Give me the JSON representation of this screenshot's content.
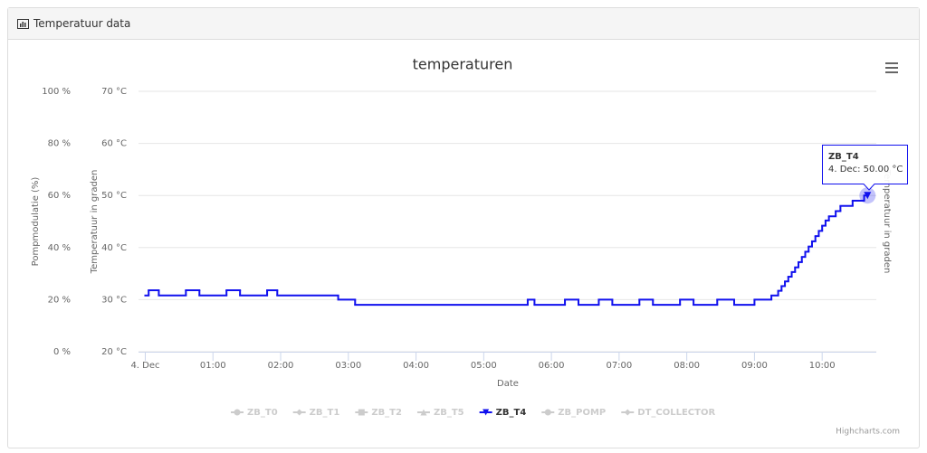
{
  "panel": {
    "title": "Temperatuur data"
  },
  "chart_data": {
    "type": "line",
    "step": true,
    "title": "temperaturen",
    "xlabel": "Date",
    "ylabel": "Temperatuur in graden",
    "y2label": "Pompmodulatie (%)",
    "y_right_label": "Temperatuur in graden",
    "xlim": [
      -0.1,
      10.8
    ],
    "xticks": [
      {
        "value": 0,
        "label": "4. Dec"
      },
      {
        "value": 1,
        "label": "01:00"
      },
      {
        "value": 2,
        "label": "02:00"
      },
      {
        "value": 3,
        "label": "03:00"
      },
      {
        "value": 4,
        "label": "04:00"
      },
      {
        "value": 5,
        "label": "05:00"
      },
      {
        "value": 6,
        "label": "06:00"
      },
      {
        "value": 7,
        "label": "07:00"
      },
      {
        "value": 8,
        "label": "08:00"
      },
      {
        "value": 9,
        "label": "09:00"
      },
      {
        "value": 10,
        "label": "10:00"
      }
    ],
    "ylim": [
      20,
      70
    ],
    "yticks": [
      {
        "value": 20,
        "label": "20 °C"
      },
      {
        "value": 30,
        "label": "30 °C"
      },
      {
        "value": 40,
        "label": "40 °C"
      },
      {
        "value": 50,
        "label": "50 °C"
      },
      {
        "value": 60,
        "label": "60 °C"
      },
      {
        "value": 70,
        "label": "70 °C"
      }
    ],
    "y2lim": [
      0,
      100
    ],
    "y2ticks": [
      {
        "value": 0,
        "label": "0 %"
      },
      {
        "value": 20,
        "label": "20 %"
      },
      {
        "value": 40,
        "label": "40 %"
      },
      {
        "value": 60,
        "label": "60 %"
      },
      {
        "value": 80,
        "label": "80 %"
      },
      {
        "value": 100,
        "label": "100 %"
      }
    ],
    "grid": true,
    "series": [
      {
        "name": "ZB_T0",
        "visible": false,
        "symbol": "circle"
      },
      {
        "name": "ZB_T1",
        "visible": false,
        "symbol": "diamond"
      },
      {
        "name": "ZB_T2",
        "visible": false,
        "symbol": "square"
      },
      {
        "name": "ZB_T5",
        "visible": false,
        "symbol": "triangle"
      },
      {
        "name": "ZB_T4",
        "visible": true,
        "symbol": "triangle-down",
        "color": "#1010ee",
        "x": [
          0,
          0.05,
          0.2,
          0.6,
          0.8,
          1.2,
          1.4,
          1.8,
          1.95,
          2.85,
          3.1,
          5.65,
          5.75,
          6.2,
          6.4,
          6.7,
          6.9,
          7.3,
          7.5,
          7.9,
          8.1,
          8.45,
          8.7,
          9.0,
          9.25,
          9.35,
          9.4,
          9.45,
          9.5,
          9.55,
          9.6,
          9.65,
          9.7,
          9.75,
          9.8,
          9.85,
          9.9,
          9.95,
          10.0,
          10.05,
          10.1,
          10.2,
          10.27,
          10.45,
          10.62,
          10.67
        ],
        "values": [
          30.8,
          31.8,
          30.8,
          31.8,
          30.8,
          31.8,
          30.8,
          31.8,
          30.8,
          30.0,
          29.0,
          30.0,
          29.0,
          30.0,
          29.0,
          30.0,
          29.0,
          30.0,
          29.0,
          30.0,
          29.0,
          30.0,
          29.0,
          30.0,
          30.8,
          31.7,
          32.6,
          33.5,
          34.4,
          35.3,
          36.2,
          37.2,
          38.2,
          39.2,
          40.2,
          41.2,
          42.2,
          43.2,
          44.2,
          45.2,
          46.0,
          47.0,
          48.0,
          49.0,
          50.0,
          50.0
        ]
      },
      {
        "name": "ZB_POMP",
        "visible": false,
        "symbol": "circle"
      },
      {
        "name": "DT_COLLECTOR",
        "visible": false,
        "symbol": "diamond"
      }
    ],
    "tooltip": {
      "title": "ZB_T4",
      "text": "4. Dec: 50.00 °C"
    },
    "credits": "Highcharts.com"
  }
}
